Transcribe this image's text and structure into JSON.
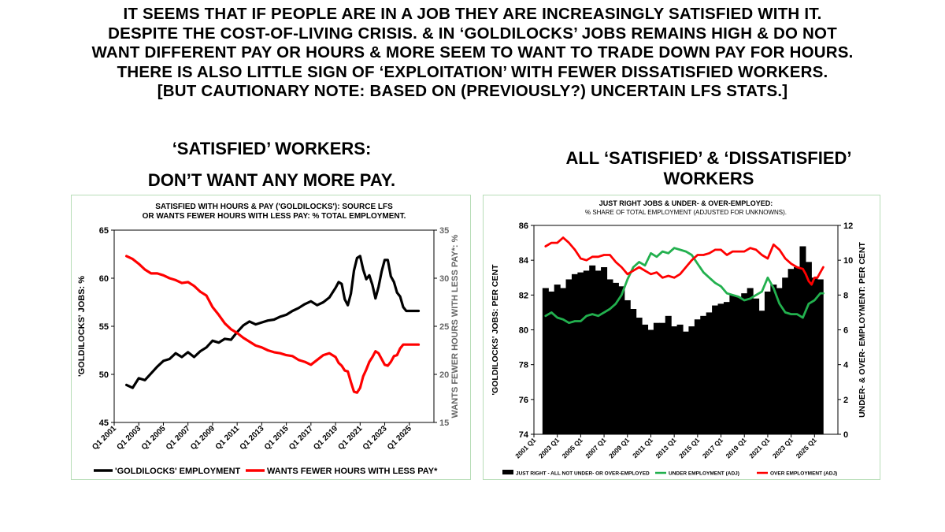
{
  "headline": [
    "IT SEEMS THAT IF PEOPLE ARE IN A JOB THEY ARE INCREASINGLY SATISFIED WITH IT.",
    "DESPITE THE COST-OF-LIVING CRISIS. & IN ‘GOLDILOCKS’ JOBS REMAINS HIGH & DO NOT",
    "WANT DIFFERENT PAY OR HOURS & MORE SEEM TO WANT TO TRADE DOWN PAY FOR HOURS.",
    "THERE IS ALSO LITTLE SIGN OF ‘EXPLOITATION’ WITH FEWER DISSATISFIED WORKERS.",
    "[BUT CAUTIONARY NOTE: BASED ON (PREVIOUSLY?) UNCERTAIN LFS STATS.]"
  ],
  "left_section": {
    "title_line1": "‘SATISFIED’ WORKERS:",
    "title_line2": "DON’T WANT ANY MORE PAY."
  },
  "right_section": {
    "title_line1": "ALL ‘SATISFIED’ & ‘DISSATISFIED’",
    "title_line2": "WORKERS"
  },
  "chart_data": [
    {
      "type": "line",
      "title": "SATISFIED WITH HOURS & PAY ('GOLDILOCKS'): SOURCE LFS",
      "subtitle": "OR WANTS FEWER HOURS WITH LESS PAY: % TOTAL EMPLOYMENT.",
      "ylabel": "'GOLDILOCKS' JOBS: %",
      "y2label": "WANTS FEWER HOURS WITH LESS PAY*: %",
      "ylim": [
        45,
        65
      ],
      "y_ticks": [
        "45",
        "50",
        "55",
        "60",
        "65"
      ],
      "y2lim": [
        15,
        35
      ],
      "y2_ticks": [
        "15",
        "20",
        "25",
        "30",
        "35"
      ],
      "xlim": [
        2001,
        2027
      ],
      "x_tick_labels": [
        "Q1 2001",
        "Q1 2003",
        "Q1 2005",
        "Q1 2007",
        "Q1 2009",
        "Q1 2011",
        "Q1 2013",
        "Q1 2015",
        "Q1 2017",
        "Q1 2019",
        "Q1 2021",
        "Q1 2023",
        "Q1 2025"
      ],
      "grid": false,
      "legend_position": "bottom",
      "series": [
        {
          "name": "'GOLDILOCKS' EMPLOYMENT",
          "color": "#000000",
          "axis": "left",
          "x": [
            2002,
            2002.5,
            2003,
            2003.5,
            2004,
            2004.5,
            2005,
            2005.5,
            2006,
            2006.5,
            2007,
            2007.5,
            2008,
            2008.5,
            2009,
            2009.5,
            2010,
            2010.5,
            2011,
            2011.5,
            2012,
            2012.5,
            2013,
            2013.5,
            2014,
            2014.5,
            2015,
            2015.5,
            2016,
            2016.5,
            2017,
            2017.5,
            2018,
            2018.5,
            2019,
            2019.25,
            2019.5,
            2019.75,
            2020,
            2020.25,
            2020.5,
            2020.75,
            2021,
            2021.25,
            2021.5,
            2021.75,
            2022,
            2022.25,
            2022.5,
            2022.75,
            2023,
            2023.25,
            2023.5,
            2023.75,
            2024,
            2024.25,
            2024.5,
            2024.75,
            2025,
            2025.25,
            2025.5,
            2025.75
          ],
          "y": [
            48.9,
            48.6,
            49.6,
            49.4,
            50.1,
            50.8,
            51.4,
            51.6,
            52.2,
            51.8,
            52.3,
            51.8,
            52.4,
            52.8,
            53.5,
            53.3,
            53.7,
            53.6,
            54.4,
            55.1,
            55.5,
            55.2,
            55.4,
            55.6,
            55.7,
            56.0,
            56.2,
            56.6,
            56.9,
            57.3,
            57.6,
            57.2,
            57.5,
            58.0,
            59.0,
            59.6,
            59.4,
            57.8,
            57.2,
            58.4,
            60.8,
            62.1,
            62.3,
            60.9,
            59.9,
            60.3,
            59.3,
            57.9,
            59.1,
            60.7,
            61.9,
            61.9,
            60.2,
            59.6,
            58.5,
            58.1,
            57.0,
            56.6,
            56.6,
            56.6,
            56.6,
            56.6
          ]
        },
        {
          "name": "WANTS FEWER HOURS WITH LESS PAY*",
          "color": "#ff0000",
          "axis": "right",
          "x": [
            2002,
            2002.5,
            2003,
            2003.5,
            2004,
            2004.5,
            2005,
            2005.5,
            2006,
            2006.5,
            2007,
            2007.5,
            2008,
            2008.5,
            2009,
            2009.5,
            2010,
            2010.5,
            2011,
            2011.5,
            2012,
            2012.5,
            2013,
            2013.5,
            2014,
            2014.5,
            2015,
            2015.5,
            2016,
            2016.5,
            2017,
            2017.5,
            2018,
            2018.5,
            2019,
            2019.25,
            2019.5,
            2019.75,
            2020,
            2020.25,
            2020.5,
            2020.75,
            2021,
            2021.25,
            2021.5,
            2021.75,
            2022,
            2022.25,
            2022.5,
            2022.75,
            2023,
            2023.25,
            2023.5,
            2023.75,
            2024,
            2024.25,
            2024.5,
            2024.75,
            2025,
            2025.25,
            2025.5,
            2025.75
          ],
          "y": [
            32.3,
            32.0,
            31.5,
            30.9,
            30.5,
            30.5,
            30.3,
            30.0,
            29.8,
            29.5,
            29.6,
            29.2,
            28.6,
            28.2,
            27.0,
            26.2,
            25.3,
            24.7,
            24.3,
            23.8,
            23.4,
            23.0,
            22.8,
            22.5,
            22.3,
            22.2,
            22.0,
            21.9,
            21.5,
            21.3,
            21.0,
            21.5,
            22.0,
            22.2,
            21.8,
            21.2,
            20.9,
            20.4,
            20.3,
            19.2,
            18.2,
            18.1,
            18.6,
            19.8,
            20.5,
            21.3,
            21.8,
            22.4,
            22.2,
            21.6,
            21.0,
            20.9,
            21.3,
            21.9,
            22.0,
            22.7,
            23.1,
            23.1,
            23.1,
            23.1,
            23.1,
            23.1
          ]
        }
      ]
    },
    {
      "type": "bar",
      "title": "JUST RIGHT JOBS & UNDER- & OVER-EMPLOYED:",
      "subtitle": "% SHARE OF TOTAL EMPLOYMENT (ADJUSTED FOR UNKNOWNS).",
      "ylabel": "'GOLDILOCKS' JOBS: PER CENT",
      "y2label": "UNDER- & OVER- EMPLOYMENT: PER CENT",
      "ylim": [
        74,
        86
      ],
      "y_ticks": [
        "74",
        "76",
        "78",
        "80",
        "82",
        "84",
        "86"
      ],
      "y2lim": [
        0,
        12
      ],
      "y2_ticks": [
        "0",
        "2",
        "4",
        "6",
        "8",
        "10",
        "12"
      ],
      "xlim": [
        2001,
        2027
      ],
      "x_tick_labels": [
        "2001 Q1",
        "2003 Q1",
        "2005 Q1",
        "2007 Q1",
        "2009 Q1",
        "2011 Q1",
        "2013 Q1",
        "2015 Q1",
        "2017 Q1",
        "2019 Q1",
        "2021 Q1",
        "2023 Q1",
        "2025 Q1"
      ],
      "grid": false,
      "legend_position": "bottom",
      "series": [
        {
          "name": "JUST RIGHT - ALL NOT UNDER- OR OVER-EMPLOYED",
          "color": "#000000",
          "axis": "left",
          "kind": "bar",
          "x": [
            2002,
            2002.5,
            2003,
            2003.5,
            2004,
            2004.5,
            2005,
            2005.5,
            2006,
            2006.5,
            2007,
            2007.5,
            2008,
            2008.5,
            2009,
            2009.5,
            2010,
            2010.5,
            2011,
            2011.5,
            2012,
            2012.5,
            2013,
            2013.5,
            2014,
            2014.5,
            2015,
            2015.5,
            2016,
            2016.5,
            2017,
            2017.5,
            2018,
            2018.5,
            2019,
            2019.5,
            2020,
            2020.5,
            2021,
            2021.5,
            2022,
            2022.5,
            2023,
            2023.5,
            2024,
            2024.5,
            2025,
            2025.5
          ],
          "y": [
            82.4,
            82.2,
            82.6,
            82.4,
            82.9,
            83.2,
            83.3,
            83.4,
            83.7,
            83.4,
            83.6,
            82.9,
            82.7,
            82.5,
            81.7,
            81.2,
            80.7,
            80.3,
            80.0,
            80.4,
            80.4,
            80.8,
            80.2,
            80.3,
            79.9,
            80.2,
            80.6,
            80.8,
            81.0,
            81.4,
            81.5,
            81.6,
            82.0,
            81.9,
            82.1,
            82.4,
            81.8,
            81.1,
            82.2,
            82.6,
            82.4,
            83.0,
            83.5,
            83.6,
            84.8,
            83.9,
            83.0,
            82.9
          ]
        },
        {
          "name": "UNDER EMPLOYMENT (ADJ)",
          "color": "#22b04e",
          "axis": "right",
          "kind": "line",
          "x": [
            2002,
            2002.5,
            2003,
            2003.5,
            2004,
            2004.5,
            2005,
            2005.5,
            2006,
            2006.5,
            2007,
            2007.5,
            2008,
            2008.5,
            2009,
            2009.5,
            2010,
            2010.5,
            2011,
            2011.5,
            2012,
            2012.5,
            2013,
            2013.5,
            2014,
            2014.5,
            2015,
            2015.5,
            2016,
            2016.5,
            2017,
            2017.5,
            2018,
            2018.5,
            2019,
            2019.5,
            2020,
            2020.5,
            2021,
            2021.5,
            2022,
            2022.5,
            2023,
            2023.5,
            2024,
            2024.5,
            2025,
            2025.5,
            2025.75
          ],
          "y": [
            6.8,
            7.0,
            6.7,
            6.6,
            6.4,
            6.5,
            6.5,
            6.8,
            6.9,
            6.8,
            7.0,
            7.2,
            7.5,
            8.0,
            8.9,
            9.6,
            9.9,
            9.7,
            10.4,
            10.2,
            10.5,
            10.4,
            10.7,
            10.6,
            10.5,
            10.3,
            9.8,
            9.3,
            9.0,
            8.7,
            8.5,
            8.1,
            8.0,
            7.9,
            7.7,
            7.8,
            8.0,
            8.2,
            9.0,
            8.4,
            7.5,
            7.0,
            6.9,
            6.9,
            6.7,
            7.5,
            7.7,
            8.1,
            8.1
          ]
        },
        {
          "name": "OVER EMPLOYMENT (ADJ)",
          "color": "#ff0000",
          "axis": "right",
          "kind": "line",
          "x": [
            2002,
            2002.5,
            2003,
            2003.5,
            2004,
            2004.5,
            2005,
            2005.5,
            2006,
            2006.5,
            2007,
            2007.5,
            2008,
            2008.5,
            2009,
            2009.5,
            2010,
            2010.5,
            2011,
            2011.5,
            2012,
            2012.5,
            2013,
            2013.5,
            2014,
            2014.5,
            2015,
            2015.5,
            2016,
            2016.5,
            2017,
            2017.5,
            2018,
            2018.5,
            2019,
            2019.5,
            2020,
            2020.5,
            2021,
            2021.5,
            2022,
            2022.5,
            2023,
            2023.5,
            2024,
            2024.25,
            2024.5,
            2024.75,
            2025,
            2025.25,
            2025.5,
            2025.75
          ],
          "y": [
            10.8,
            11.0,
            11.0,
            11.3,
            11.0,
            10.6,
            10.1,
            10.0,
            10.2,
            10.2,
            10.3,
            10.3,
            9.9,
            9.6,
            9.2,
            9.4,
            9.6,
            9.4,
            9.2,
            9.3,
            9.0,
            9.1,
            9.0,
            9.2,
            9.6,
            10.0,
            10.3,
            10.3,
            10.4,
            10.6,
            10.6,
            10.3,
            10.5,
            10.5,
            10.5,
            10.7,
            10.6,
            10.3,
            10.1,
            10.9,
            10.6,
            10.1,
            9.8,
            9.6,
            9.5,
            9.2,
            8.8,
            8.6,
            9.0,
            9.0,
            9.3,
            9.6
          ]
        }
      ]
    }
  ]
}
